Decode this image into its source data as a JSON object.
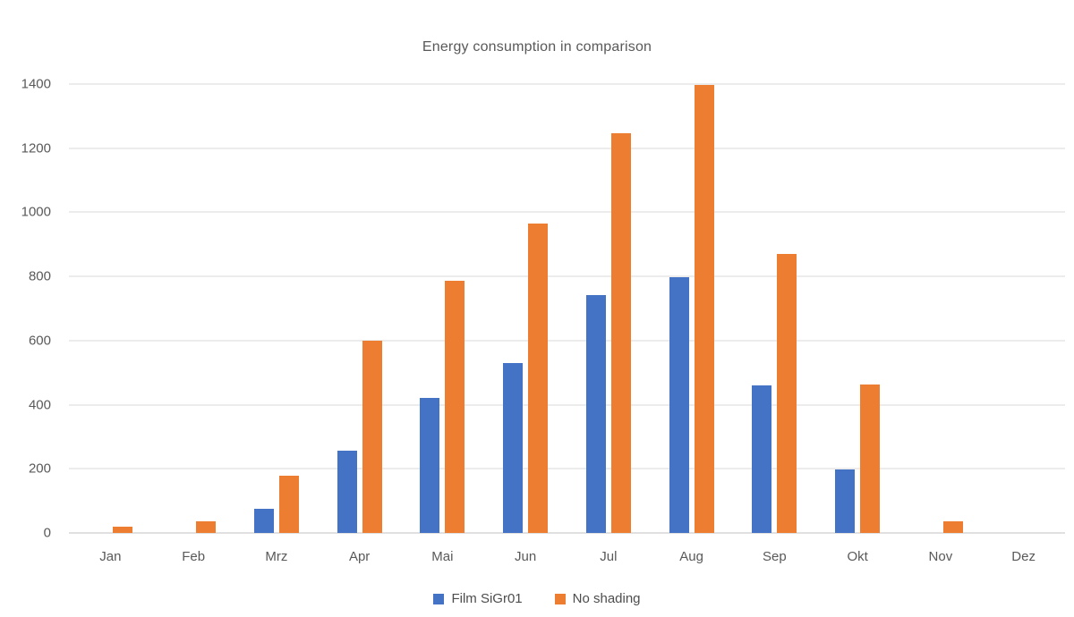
{
  "chart_data": {
    "type": "bar",
    "title": "Energy consumption in comparison",
    "categories": [
      "Jan",
      "Feb",
      "Mrz",
      "Apr",
      "Mai",
      "Jun",
      "Jul",
      "Aug",
      "Sep",
      "Okt",
      "Nov",
      "Dez"
    ],
    "series": [
      {
        "name": "Film SiGr01",
        "color": "#4472C4",
        "values": [
          0,
          0,
          75,
          257,
          420,
          530,
          741,
          798,
          459,
          197,
          0,
          0
        ]
      },
      {
        "name": "No shading",
        "color": "#ED7D31",
        "values": [
          20,
          37,
          178,
          601,
          786,
          964,
          1248,
          1397,
          870,
          462,
          37,
          0
        ]
      }
    ],
    "xlabel": "",
    "ylabel": "",
    "ylim": [
      0,
      1400
    ],
    "yticks": [
      0,
      200,
      400,
      600,
      800,
      1000,
      1200,
      1400
    ],
    "grid": "horizontal",
    "legend_position": "bottom"
  },
  "colors": {
    "gridline": "#D9D9D9",
    "axis_line": "#C0C0C0",
    "label_text": "#595959",
    "title_text": "#595959",
    "background": "#FFFFFF"
  }
}
